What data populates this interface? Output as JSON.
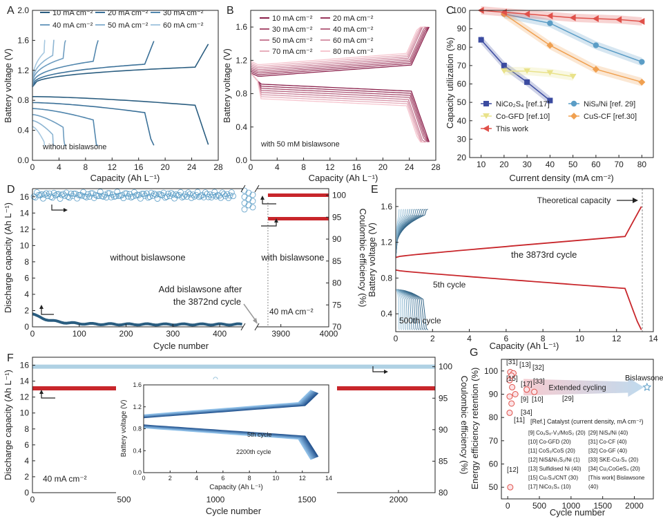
{
  "colors": {
    "blue_dark": "#2a5d80",
    "blue_light": "#9cc6de",
    "red": "#c8262b",
    "pink_light": "#f3c0c6",
    "navy": "#3b4ba0",
    "teal": "#5b9dc6",
    "yellow": "#e9e28a",
    "orange": "#f0a050",
    "red_marker": "#e0514a",
    "gray": "#888888"
  },
  "chart_data": [
    {
      "id": "A",
      "type": "line",
      "panel_label": "A",
      "xlabel": "Capacity (Ah L⁻¹)",
      "ylabel": "Battery voltage (V)",
      "xlim": [
        0,
        28
      ],
      "ylim": [
        0,
        2.0
      ],
      "xticks": [
        "0",
        "4",
        "8",
        "12",
        "16",
        "20",
        "24",
        "28"
      ],
      "yticks": [
        "0.0",
        "0.4",
        "0.8",
        "1.2",
        "1.6",
        "2.0"
      ],
      "annotation": "without bislawsone",
      "series": [
        {
          "name": "10 mA cm⁻²",
          "capacity": 26.5
        },
        {
          "name": "20 mA cm⁻²",
          "capacity": 18.3
        },
        {
          "name": "30 mA cm⁻²",
          "capacity": 9.9
        },
        {
          "name": "40 mA cm⁻²",
          "capacity": 5.0
        },
        {
          "name": "50 mA cm⁻²",
          "capacity": 3.3
        },
        {
          "name": "60 mA cm⁻²",
          "capacity": 1.9
        }
      ]
    },
    {
      "id": "B",
      "type": "line",
      "panel_label": "B",
      "xlabel": "Capacity (Ah L⁻¹)",
      "ylabel": "Battery voltage (V)",
      "xlim": [
        0,
        28
      ],
      "ylim": [
        0.0,
        1.8
      ],
      "xticks": [
        "0",
        "4",
        "8",
        "12",
        "16",
        "20",
        "24",
        "28"
      ],
      "yticks": [
        "0.0",
        "0.4",
        "0.8",
        "1.2",
        "1.6"
      ],
      "annotation": "with 50 mM bislawsone",
      "series": [
        {
          "name": "10 mA cm⁻²",
          "capacity": 27.0
        },
        {
          "name": "20 mA cm⁻²",
          "capacity": 26.9
        },
        {
          "name": "30 mA cm⁻²",
          "capacity": 26.8
        },
        {
          "name": "40 mA cm⁻²",
          "capacity": 26.7
        },
        {
          "name": "50 mA cm⁻²",
          "capacity": 26.5
        },
        {
          "name": "60 mA cm⁻²",
          "capacity": 26.4
        },
        {
          "name": "70 mA cm⁻²",
          "capacity": 26.3
        },
        {
          "name": "80 mA cm⁻²",
          "capacity": 26.2
        }
      ]
    },
    {
      "id": "C",
      "type": "line",
      "panel_label": "C",
      "xlabel": "Current density (mA cm⁻²)",
      "ylabel": "Capacity utilization (%)",
      "xlim": [
        5,
        85
      ],
      "ylim": [
        20,
        100
      ],
      "xticks": [
        "10",
        "20",
        "30",
        "40",
        "50",
        "60",
        "70",
        "80"
      ],
      "yticks": [
        "20",
        "30",
        "40",
        "50",
        "60",
        "70",
        "80",
        "90",
        "100"
      ],
      "series": [
        {
          "name": "NiCo₂S₄ [ref.17]",
          "x": [
            10,
            20,
            30,
            40
          ],
          "y": [
            84,
            70,
            61,
            51
          ]
        },
        {
          "name": "NiSₓ/Ni [ref. 29]",
          "x": [
            20,
            40,
            60,
            80
          ],
          "y": [
            98,
            93,
            81,
            72
          ]
        },
        {
          "name": "Co-GFD [ref.10]",
          "x": [
            20,
            30,
            40,
            50
          ],
          "y": [
            67,
            67,
            66,
            64
          ]
        },
        {
          "name": "CuS-CF [ref.30]",
          "x": [
            20,
            40,
            60,
            80
          ],
          "y": [
            98,
            81,
            68,
            61
          ]
        },
        {
          "name": "This work",
          "x": [
            10,
            20,
            30,
            40,
            50,
            60,
            70,
            80
          ],
          "y": [
            100,
            99,
            98,
            97,
            96,
            95.5,
            95,
            94
          ]
        }
      ]
    },
    {
      "id": "D",
      "type": "scatter",
      "panel_label": "D",
      "xlabel": "Cycle number",
      "ylabel": "Discharge capacity (Ah L⁻¹)",
      "y2label": "Coulombic efficiency (%)",
      "xticks": [
        "0",
        "100",
        "200",
        "300",
        "400",
        "3900",
        "4000"
      ],
      "yticks": [
        "0",
        "2",
        "4",
        "6",
        "8",
        "10",
        "12",
        "14",
        "16"
      ],
      "y2ticks": [
        "70",
        "75",
        "80",
        "85",
        "90",
        "95",
        "100"
      ],
      "annotations": [
        "without bislawsone",
        "with bislawsone",
        "Add bislawsone after the 3872nd cycle",
        "40 mA cm⁻²"
      ],
      "without": {
        "capacity_start": 1.6,
        "capacity_end": 0.3,
        "ce": 100
      },
      "with": {
        "capacity": 13.3,
        "ce": 100
      }
    },
    {
      "id": "E",
      "type": "line",
      "panel_label": "E",
      "xlabel": "Capacity (Ah L⁻¹)",
      "ylabel": "Battery voltage (V)",
      "xlim": [
        0,
        14
      ],
      "ylim": [
        0.2,
        1.8
      ],
      "xticks": [
        "0",
        "2",
        "4",
        "6",
        "8",
        "10",
        "12",
        "14"
      ],
      "yticks": [
        "0.4",
        "0.8",
        "1.2",
        "1.6"
      ],
      "annotations": [
        "Theoretical capacity",
        "the 3873rd cycle",
        "5th cycle",
        "500th cycle"
      ],
      "theoretical_capacity": 13.4
    },
    {
      "id": "F",
      "type": "scatter",
      "panel_label": "F",
      "xlabel": "Cycle number",
      "ylabel": "Discharge capacity (Ah L⁻¹)",
      "y2label": "Coulombic efficiency (%)",
      "xlim": [
        0,
        2200
      ],
      "ylim": [
        0,
        17
      ],
      "xticks": [
        "0",
        "500",
        "1000",
        "1500",
        "2000"
      ],
      "yticks": [
        "0",
        "2",
        "4",
        "6",
        "8",
        "10",
        "12",
        "14",
        "16"
      ],
      "y2ticks": [
        "80",
        "85",
        "90",
        "95",
        "100"
      ],
      "annotation": "40 mA cm⁻²",
      "capacity": 13.1,
      "ce": 100,
      "inset": {
        "xlabel": "Capacity (Ah L⁻¹)",
        "ylabel": "Battery voltage (V)",
        "xticks": [
          "0",
          "2",
          "4",
          "6",
          "8",
          "10",
          "12",
          "14"
        ],
        "yticks": [
          "0.0",
          "0.4",
          "0.8",
          "1.2",
          "1.6"
        ],
        "labels": [
          "5th cycle",
          "2200th cycle"
        ]
      }
    },
    {
      "id": "G",
      "type": "scatter",
      "panel_label": "G",
      "xlabel": "Cycle number",
      "ylabel": "Energy efficiency retention (%)",
      "xlim": [
        -100,
        2300
      ],
      "ylim": [
        45,
        105
      ],
      "xticks": [
        "0",
        "500",
        "1000",
        "1500",
        "2000"
      ],
      "yticks": [
        "50",
        "60",
        "70",
        "80",
        "90",
        "100"
      ],
      "arrow_label": "Extended cycling",
      "this_work_label": "Bislawsone",
      "this_work": {
        "x": 2200,
        "y": 93
      },
      "points": [
        {
          "ref": "[31]",
          "x": 40,
          "y": 99.5
        },
        {
          "ref": "[13]",
          "x": 90,
          "y": 99
        },
        {
          "ref": "[32]",
          "x": 60,
          "y": 98
        },
        {
          "ref": "[15]",
          "x": 30,
          "y": 96
        },
        {
          "ref": "[17]",
          "x": 70,
          "y": 93
        },
        {
          "ref": "[33]",
          "x": 300,
          "y": 92
        },
        {
          "ref": "[29]",
          "x": 420,
          "y": 91
        },
        {
          "ref": "[10]",
          "x": 120,
          "y": 90
        },
        {
          "ref": "[9]",
          "x": 30,
          "y": 89
        },
        {
          "ref": "[34]",
          "x": 60,
          "y": 86
        },
        {
          "ref": "[11]",
          "x": 30,
          "y": 82
        },
        {
          "ref": "[12]",
          "x": 40,
          "y": 50
        }
      ],
      "legend_title": "[Ref.] Catalyst (current density, mA cm⁻²)",
      "legend_left": [
        "[9] Co₉S₈-V₃/MoS₂ (20)",
        "[10] Co-GFD (20)",
        "[11] CoS₂/CoS (20)",
        "[12] NiS&Ni₃S₂/Ni (1)",
        "[13] Sulfidised Ni (40)",
        "[15] Cu₇S₄/CNT (30)",
        "[17] NiCo₂S₄ (10)"
      ],
      "legend_right": [
        "[29] NiSₓ/Ni (40)",
        "[31] Co-CF (40)",
        "[32] Co-GF (40)",
        "[33] SKE-Cu₇S₄ (20)",
        "[34] Cu₂CoGeS₄ (20)",
        "[This work] Bislawsone",
        "(40)"
      ]
    }
  ]
}
